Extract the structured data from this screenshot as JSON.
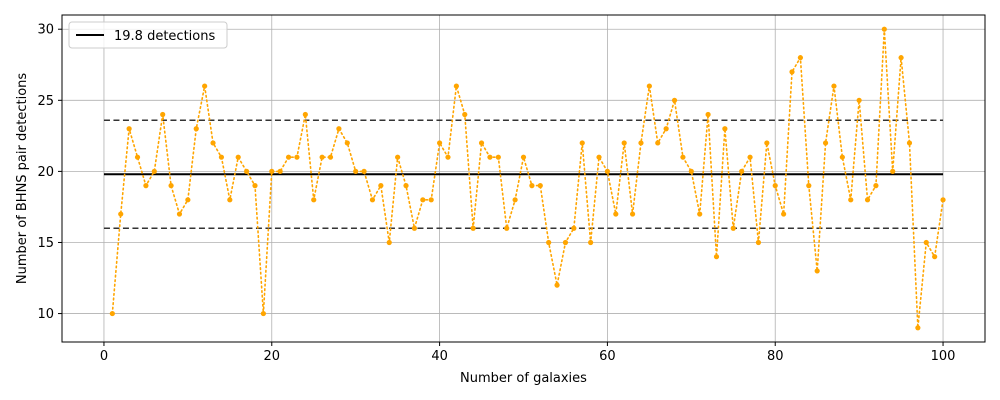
{
  "chart_data": {
    "type": "line",
    "xlabel": "Number of galaxies",
    "ylabel": "Number of BHNS pair detections",
    "xlim": [
      -5,
      105
    ],
    "ylim": [
      8,
      31
    ],
    "xticks": [
      0,
      20,
      40,
      60,
      80,
      100
    ],
    "yticks": [
      10,
      15,
      20,
      25,
      30
    ],
    "grid": true,
    "legend_placement": "top-left",
    "series": [
      {
        "name": "",
        "style": "dotted line with point markers",
        "color": "#ffa500",
        "x": [
          1,
          2,
          3,
          4,
          5,
          6,
          7,
          8,
          9,
          10,
          11,
          12,
          13,
          14,
          15,
          16,
          17,
          18,
          19,
          20,
          21,
          22,
          23,
          24,
          25,
          26,
          27,
          28,
          29,
          30,
          31,
          32,
          33,
          34,
          35,
          36,
          37,
          38,
          39,
          40,
          41,
          42,
          43,
          44,
          45,
          46,
          47,
          48,
          49,
          50,
          51,
          52,
          53,
          54,
          55,
          56,
          57,
          58,
          59,
          60,
          61,
          62,
          63,
          64,
          65,
          66,
          67,
          68,
          69,
          70,
          71,
          72,
          73,
          74,
          75,
          76,
          77,
          78,
          79,
          80,
          81,
          82,
          83,
          84,
          85,
          86,
          87,
          88,
          89,
          90,
          91,
          92,
          93,
          94,
          95,
          96,
          97,
          98,
          99,
          100
        ],
        "values": [
          10,
          17,
          23,
          21,
          19,
          20,
          24,
          19,
          17,
          18,
          23,
          26,
          22,
          21,
          18,
          21,
          20,
          19,
          10,
          20,
          20,
          21,
          21,
          24,
          18,
          21,
          21,
          23,
          22,
          20,
          20,
          18,
          19,
          15,
          21,
          19,
          16,
          18,
          18,
          22,
          21,
          26,
          24,
          16,
          22,
          21,
          21,
          16,
          18,
          21,
          19,
          19,
          15,
          12,
          15,
          16,
          22,
          15,
          21,
          20,
          17,
          22,
          17,
          22,
          26,
          22,
          23,
          25,
          21,
          20,
          17,
          24,
          14,
          23,
          16,
          20,
          21,
          15,
          22,
          19,
          17,
          27,
          28,
          19,
          13,
          22,
          26,
          21,
          18,
          25,
          18,
          19,
          30,
          20,
          28,
          22,
          9,
          15,
          14,
          18
        ]
      }
    ],
    "reference_lines": [
      {
        "name": "19.8 detections",
        "y": 19.8,
        "style": "solid",
        "color": "#000000",
        "x_range": [
          0,
          100
        ]
      },
      {
        "name": "",
        "y": 23.6,
        "style": "dashed",
        "color": "#333333",
        "x_range": [
          0,
          100
        ]
      },
      {
        "name": "",
        "y": 16.0,
        "style": "dashed",
        "color": "#333333",
        "x_range": [
          0,
          100
        ]
      }
    ],
    "legend": [
      {
        "label": "19.8 detections",
        "color": "#000000",
        "style": "solid"
      }
    ]
  }
}
